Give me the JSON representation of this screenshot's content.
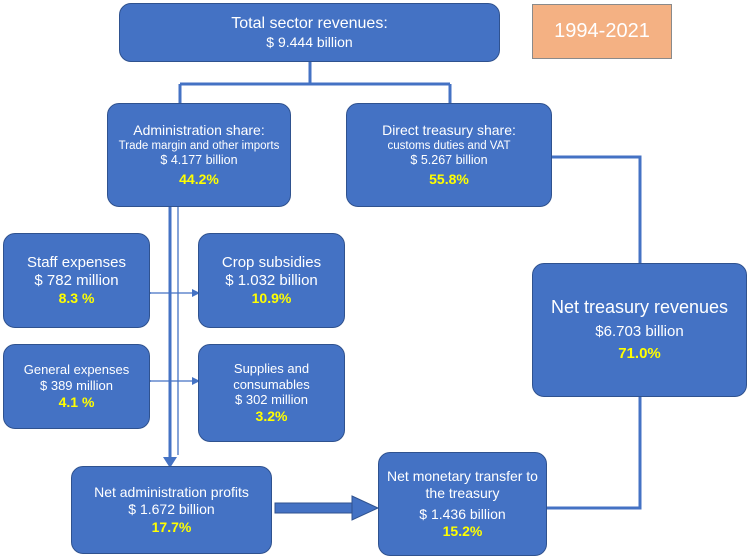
{
  "period": "1994-2021",
  "colors": {
    "box_fill": "#4472c4",
    "box_border": "#2f528f",
    "highlight": "#ffff00",
    "period_fill": "#f4b183"
  },
  "total": {
    "title": "Total sector revenues:",
    "amount": "$ 9.444 billion"
  },
  "admin": {
    "title": "Administration share:",
    "subtitle": "Trade margin and other imports",
    "amount": "$ 4.177 billion",
    "pct": "44.2%"
  },
  "treasury_share": {
    "title": "Direct treasury share:",
    "subtitle": "customs duties and VAT",
    "amount": "$ 5.267 billion",
    "pct": "55.8%"
  },
  "staff": {
    "title": "Staff expenses",
    "amount": "$ 782 million",
    "pct": "8.3 %"
  },
  "crop": {
    "title": "Crop subsidies",
    "amount": "$ 1.032 billion",
    "pct": "10.9%"
  },
  "general": {
    "title": "General expenses",
    "amount": "$ 389 million",
    "pct": "4.1 %"
  },
  "supplies": {
    "title_line1": "Supplies and",
    "title_line2": "consumables",
    "amount": "$ 302 million",
    "pct": "3.2%"
  },
  "net_treasury": {
    "title": "Net treasury revenues",
    "amount": "$6.703 billion",
    "pct": "71.0%"
  },
  "net_admin": {
    "title": "Net administration profits",
    "amount": "$ 1.672 billion",
    "pct": "17.7%"
  },
  "transfer": {
    "title_line1": "Net monetary transfer to",
    "title_line2": "the treasury",
    "amount": "$ 1.436 billion",
    "pct": "15.2%"
  }
}
